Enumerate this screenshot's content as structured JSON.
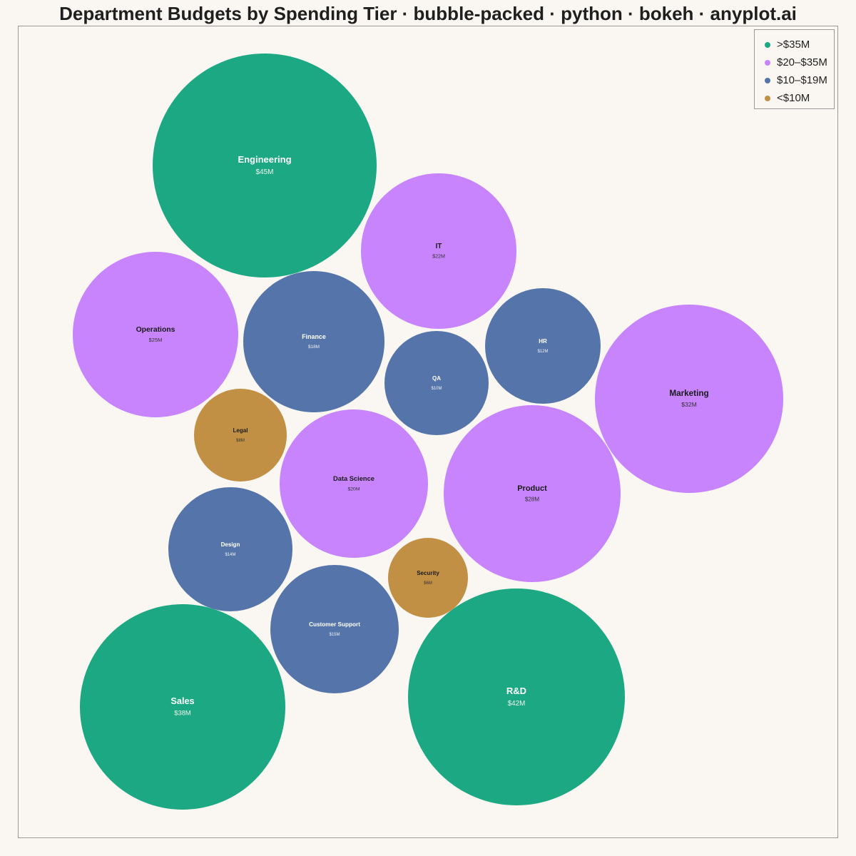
{
  "title": "Department Budgets by Spending Tier · bubble-packed · python · bokeh · anyplot.ai",
  "legend": {
    "items": [
      {
        "label": ">$35M",
        "color": "#1BA882"
      },
      {
        "label": "$20–$35M",
        "color": "#C884FC"
      },
      {
        "label": "$10–$19M",
        "color": "#5575AA"
      },
      {
        "label": "<$10M",
        "color": "#C29045"
      }
    ]
  },
  "chart_data": {
    "type": "bubble-packed",
    "title": "Department Budgets by Spending Tier · bubble-packed · python · bokeh · anyplot.ai",
    "legend_position": "top-right",
    "grid": false,
    "tiers": [
      ">$35M",
      "$20–$35M",
      "$10–$19M",
      "<$10M"
    ],
    "bubbles": [
      {
        "name": "Engineering",
        "value_label": "$45M",
        "value": 45,
        "tier": 0
      },
      {
        "name": "R&D",
        "value_label": "$42M",
        "value": 42,
        "tier": 0
      },
      {
        "name": "Sales",
        "value_label": "$38M",
        "value": 38,
        "tier": 0
      },
      {
        "name": "Marketing",
        "value_label": "$32M",
        "value": 32,
        "tier": 1
      },
      {
        "name": "Product",
        "value_label": "$28M",
        "value": 28,
        "tier": 1
      },
      {
        "name": "Operations",
        "value_label": "$25M",
        "value": 25,
        "tier": 1
      },
      {
        "name": "IT",
        "value_label": "$22M",
        "value": 22,
        "tier": 1
      },
      {
        "name": "Data Science",
        "value_label": "$20M",
        "value": 20,
        "tier": 1
      },
      {
        "name": "Finance",
        "value_label": "$18M",
        "value": 18,
        "tier": 2
      },
      {
        "name": "Customer Support",
        "value_label": "$15M",
        "value": 15,
        "tier": 2
      },
      {
        "name": "Design",
        "value_label": "$14M",
        "value": 14,
        "tier": 2
      },
      {
        "name": "HR",
        "value_label": "$12M",
        "value": 12,
        "tier": 2
      },
      {
        "name": "QA",
        "value_label": "$10M",
        "value": 10,
        "tier": 2
      },
      {
        "name": "Legal",
        "value_label": "$8M",
        "value": 8,
        "tier": 3
      },
      {
        "name": "Security",
        "value_label": "$6M",
        "value": 6,
        "tier": 3
      }
    ]
  }
}
